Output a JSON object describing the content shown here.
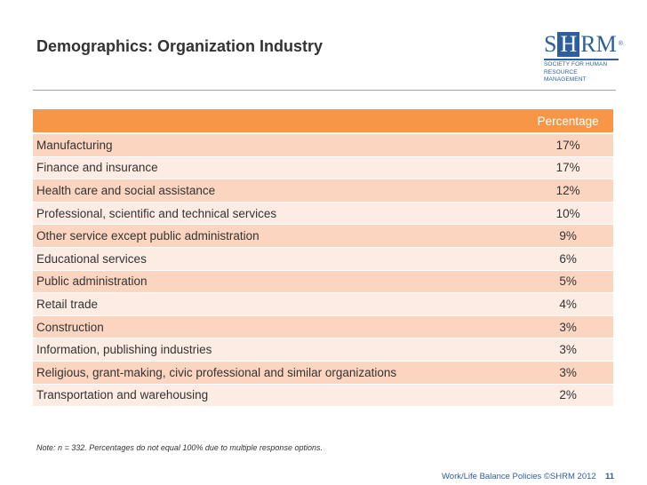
{
  "title": "Demographics: Organization Industry",
  "logo": {
    "mark_s": "S",
    "mark_h": "H",
    "mark_rm": "RM",
    "reg": "®",
    "line1": "SOCIETY FOR HUMAN",
    "line2": "RESOURCE MANAGEMENT"
  },
  "table": {
    "header_label": "",
    "header_value": "Percentage",
    "rows": [
      {
        "label": "Manufacturing",
        "value": "17%"
      },
      {
        "label": "Finance and insurance",
        "value": "17%"
      },
      {
        "label": "Health care and social assistance",
        "value": "12%"
      },
      {
        "label": "Professional, scientific and technical services",
        "value": "10%"
      },
      {
        "label": "Other service except public administration",
        "value": "9%"
      },
      {
        "label": "Educational services",
        "value": "6%"
      },
      {
        "label": "Public administration",
        "value": "5%"
      },
      {
        "label": "Retail trade",
        "value": "4%"
      },
      {
        "label": "Construction",
        "value": "3%"
      },
      {
        "label": "Information, publishing industries",
        "value": "3%"
      },
      {
        "label": "Religious, grant-making, civic professional and similar organizations",
        "value": "3%"
      },
      {
        "label": "Transportation and warehousing",
        "value": "2%"
      }
    ]
  },
  "note": "Note: n = 332. Percentages do not equal 100% due to multiple response options.",
  "footer": {
    "text": "Work/Life Balance Policies ©SHRM 2012",
    "page": "11"
  },
  "colors": {
    "header": "#f79646",
    "row_odd": "#fbd5c0",
    "row_even": "#fdece3",
    "brand": "#2d5f9e"
  }
}
